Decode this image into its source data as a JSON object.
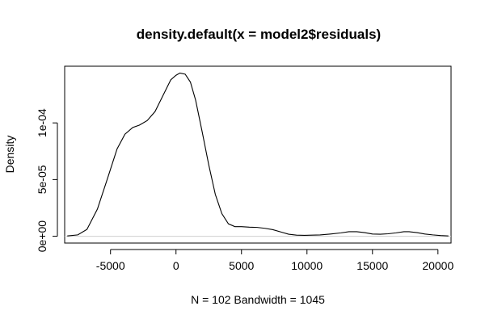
{
  "chart_data": {
    "type": "line",
    "title": "density.default(x = model2$residuals)",
    "xlabel": "N = 102   Bandwidth = 1045",
    "ylabel": "Density",
    "xlim": [
      -8500,
      21000
    ],
    "ylim": [
      -6e-06,
      0.00015
    ],
    "x_ticks": [
      -5000,
      0,
      5000,
      10000,
      15000,
      20000
    ],
    "x_tick_labels": [
      "-5000",
      "0",
      "5000",
      "10000",
      "15000",
      "20000"
    ],
    "y_ticks": [
      0,
      5e-05,
      0.0001
    ],
    "y_tick_labels": [
      "0e+00",
      "5e-05",
      "1e-04"
    ],
    "grid": false,
    "baseline": 0,
    "series": [
      {
        "x": [
          -8300,
          -7500,
          -6800,
          -6000,
          -5200,
          -4500,
          -3900,
          -3300,
          -2800,
          -2200,
          -1600,
          -1000,
          -400,
          0,
          300,
          700,
          1100,
          1500,
          2000,
          2500,
          3000,
          3500,
          4000,
          4500,
          5000,
          5600,
          6200,
          6800,
          7400,
          8000,
          8600,
          9200,
          9800,
          10400,
          11000,
          11800,
          12600,
          13200,
          13800,
          14400,
          15000,
          15600,
          16200,
          16800,
          17400,
          17800,
          18400,
          19000,
          19600,
          20200,
          20800
        ],
        "y": [
          3e-07,
          1.2e-06,
          6e-06,
          2.4e-05,
          5.2e-05,
          7.7e-05,
          9e-05,
          9.6e-05,
          9.8e-05,
          0.000102,
          0.00011,
          0.000124,
          0.000138,
          0.000142,
          0.000144,
          0.000143,
          0.000136,
          0.00012,
          9.2e-05,
          6.3e-05,
          3.7e-05,
          2e-05,
          1.1e-05,
          8.5e-06,
          8.5e-06,
          8e-06,
          7.8e-06,
          7e-06,
          5.8e-06,
          3.8e-06,
          1.8e-06,
          1e-06,
          8e-07,
          1e-06,
          1.2e-06,
          2e-06,
          3e-06,
          4e-06,
          4e-06,
          3.2e-06,
          2e-06,
          1.8e-06,
          2.2e-06,
          3e-06,
          4e-06,
          4e-06,
          3.2e-06,
          2e-06,
          1.2e-06,
          6e-07,
          3e-07
        ]
      }
    ]
  }
}
